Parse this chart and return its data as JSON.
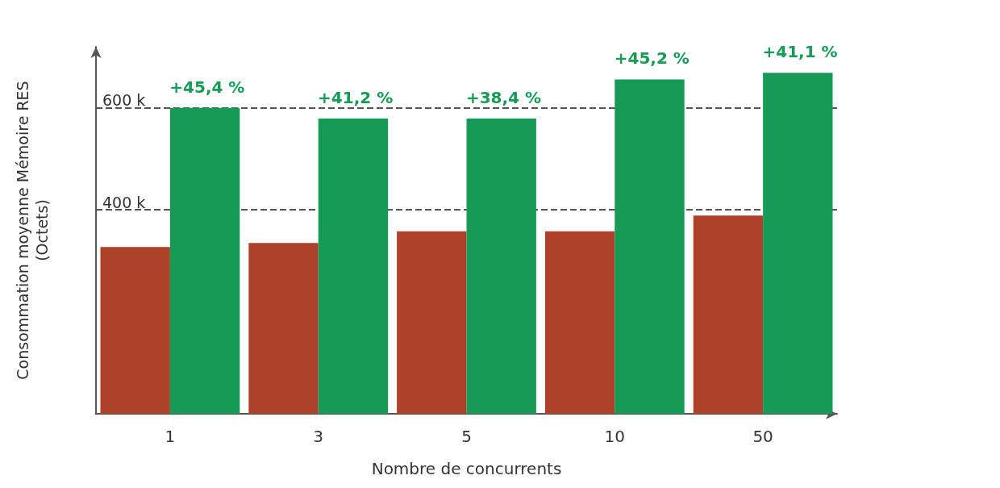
{
  "chart_data": {
    "type": "bar",
    "xlabel": "Nombre de concurrents",
    "ylabel": "Consommation moyenne Mémoire RES\n(Octets)",
    "categories": [
      "1",
      "3",
      "5",
      "10",
      "50"
    ],
    "series": [
      {
        "color": "#ae4129",
        "values": [
          327000,
          335000,
          358000,
          358000,
          389000
        ]
      },
      {
        "color": "#189a57",
        "values": [
          600000,
          579000,
          579000,
          656000,
          669000
        ]
      }
    ],
    "annotations": [
      "+45,4 %",
      "+41,2 %",
      "+38,4 %",
      "+45,2 %",
      "+41,1 %"
    ],
    "ylim": [
      0,
      720000
    ],
    "yticks": [
      {
        "value": 400000,
        "label": "400 k"
      },
      {
        "value": 600000,
        "label": "600 k"
      }
    ],
    "grid": "y",
    "line_style": "dashed"
  }
}
